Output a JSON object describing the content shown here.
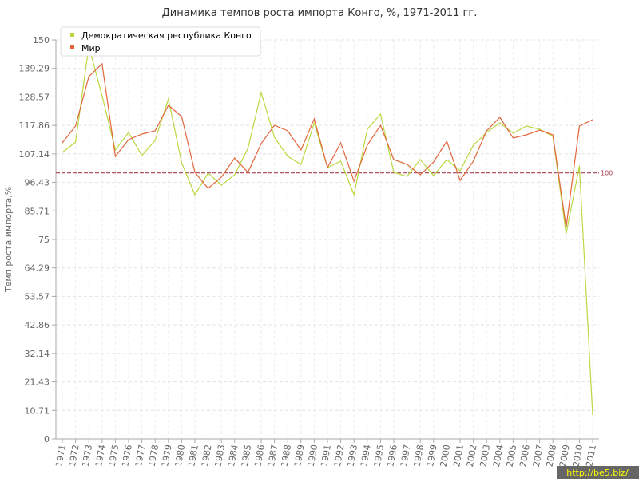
{
  "chart_data": {
    "type": "line",
    "title": "Динамика темпов роста импорта Конго, %, 1971-2011 гг.",
    "y_label": "Темп роста импорта,%",
    "categories": [
      "1971",
      "1972",
      "1973",
      "1974",
      "1975",
      "1976",
      "1977",
      "1978",
      "1979",
      "1980",
      "1981",
      "1982",
      "1983",
      "1984",
      "1985",
      "1986",
      "1987",
      "1988",
      "1989",
      "1990",
      "1991",
      "1992",
      "1993",
      "1994",
      "1995",
      "1996",
      "1997",
      "1998",
      "1999",
      "2000",
      "2001",
      "2002",
      "2003",
      "2004",
      "2005",
      "2006",
      "2007",
      "2008",
      "2009",
      "2010",
      "2011"
    ],
    "series": [
      {
        "name": "Демократическая республика Конго",
        "color": "#b8d940",
        "values": [
          107.7,
          111.6,
          147.6,
          129,
          108.6,
          115.2,
          106.5,
          112.2,
          127.8,
          103.8,
          91.8,
          99.9,
          95.4,
          99.3,
          109.2,
          130.2,
          113.4,
          106.2,
          103.2,
          118.8,
          102,
          104.4,
          91.8,
          116.4,
          122.1,
          100.2,
          98.7,
          105,
          99,
          105,
          100.8,
          110.4,
          115.2,
          118.8,
          114.9,
          117.6,
          116.4,
          113.7,
          77.1,
          102.6,
          9
        ]
      },
      {
        "name": "Мир",
        "color": "#e2673c",
        "values": [
          111.3,
          117.6,
          136.2,
          141,
          106.2,
          112.5,
          114.6,
          115.8,
          125.4,
          121.2,
          100.2,
          94.2,
          98.4,
          105.6,
          100.2,
          111,
          117.9,
          115.8,
          108.6,
          120.3,
          102,
          111.3,
          96.9,
          110.4,
          117.9,
          105,
          103.2,
          99.3,
          104.1,
          111.9,
          97.2,
          104.4,
          115.8,
          120.9,
          113.1,
          114.3,
          116.1,
          114.3,
          79.5,
          117.6,
          120
        ]
      }
    ],
    "ylim": [
      0,
      150
    ],
    "yticks": [
      0,
      10.71,
      21.43,
      32.14,
      42.86,
      53.57,
      64.29,
      75,
      85.71,
      96.43,
      107.14,
      117.86,
      128.57,
      139.29,
      150
    ],
    "grid": true,
    "reference_line": 100,
    "reference_color": "#a8404e",
    "legend": "top-left",
    "watermark": "http://be5.biz/"
  }
}
